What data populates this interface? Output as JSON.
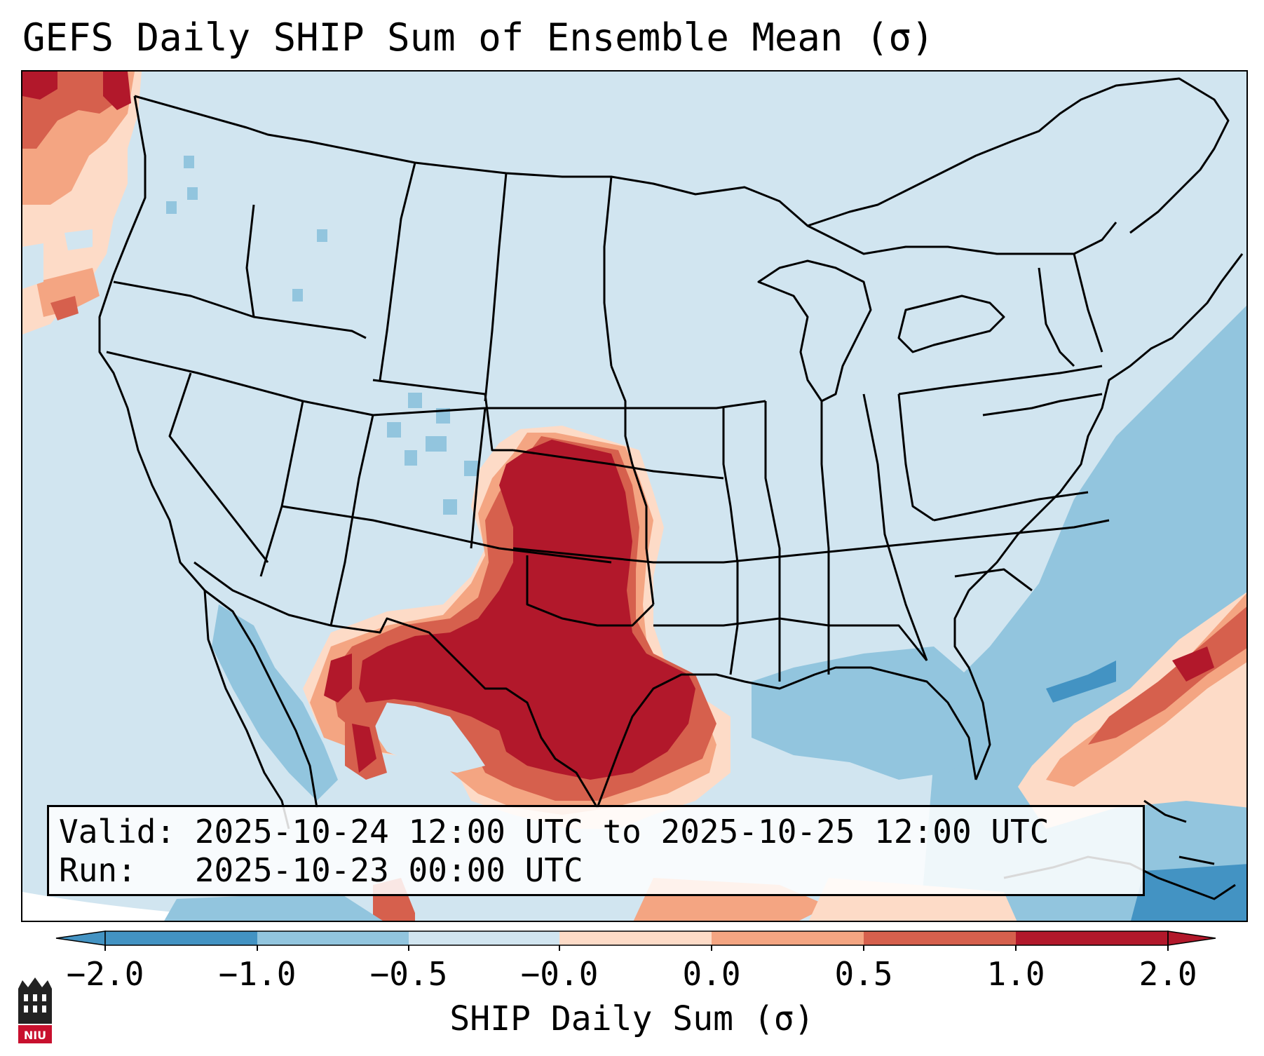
{
  "title": "GEFS Daily SHIP Sum of Ensemble Mean (σ)",
  "info": {
    "valid_line": "Valid: 2025-10-24 12:00 UTC to 2025-10-25 12:00 UTC",
    "run_line": "Run:   2025-10-23 00:00 UTC"
  },
  "colorbar": {
    "label": "SHIP Daily Sum (σ)",
    "ticks": [
      "−2.0",
      "−1.0",
      "−0.5",
      "−0.0",
      "0.0",
      "0.5",
      "1.0",
      "2.0"
    ],
    "colors": [
      "#4393c3",
      "#92c5de",
      "#d1e5f0",
      "#fbfcfd",
      "#fddbc7",
      "#f4a582",
      "#d6604d",
      "#b2182b"
    ]
  },
  "logo": {
    "text": "NIU"
  },
  "colors": {
    "background": "#d1e5f0",
    "dark_blue": "#4393c3",
    "mid_blue": "#92c5de",
    "white": "#fbfcfd",
    "light_red": "#fddbc7",
    "salmon": "#f4a582",
    "red": "#d6604d",
    "dark_red": "#b2182b",
    "logo_red": "#c8102e"
  }
}
